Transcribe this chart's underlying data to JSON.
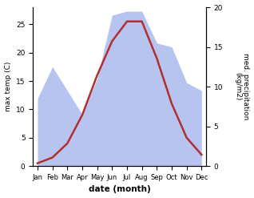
{
  "months": [
    "Jan",
    "Feb",
    "Mar",
    "Apr",
    "May",
    "Jun",
    "Jul",
    "Aug",
    "Sep",
    "Oct",
    "Nov",
    "Dec"
  ],
  "temp_max": [
    0.5,
    1.5,
    4.0,
    9.0,
    16.0,
    22.0,
    25.5,
    25.5,
    19.0,
    11.0,
    5.0,
    2.0
  ],
  "precip": [
    8.5,
    12.5,
    9.5,
    6.5,
    11.0,
    19.0,
    19.5,
    19.5,
    15.5,
    15.0,
    10.5,
    9.5
  ],
  "temp_color": "#b03030",
  "precip_fill_color": "#b8c4f0",
  "temp_ylim": [
    0,
    28
  ],
  "precip_ylim": [
    0,
    20
  ],
  "temp_yticks": [
    0,
    5,
    10,
    15,
    20,
    25
  ],
  "precip_yticks": [
    0,
    5,
    10,
    15,
    20
  ],
  "xlabel": "date (month)",
  "ylabel_left": "max temp (C)",
  "ylabel_right": "med. precipitation\n(kg/m2)",
  "bg_color": "#ffffff"
}
